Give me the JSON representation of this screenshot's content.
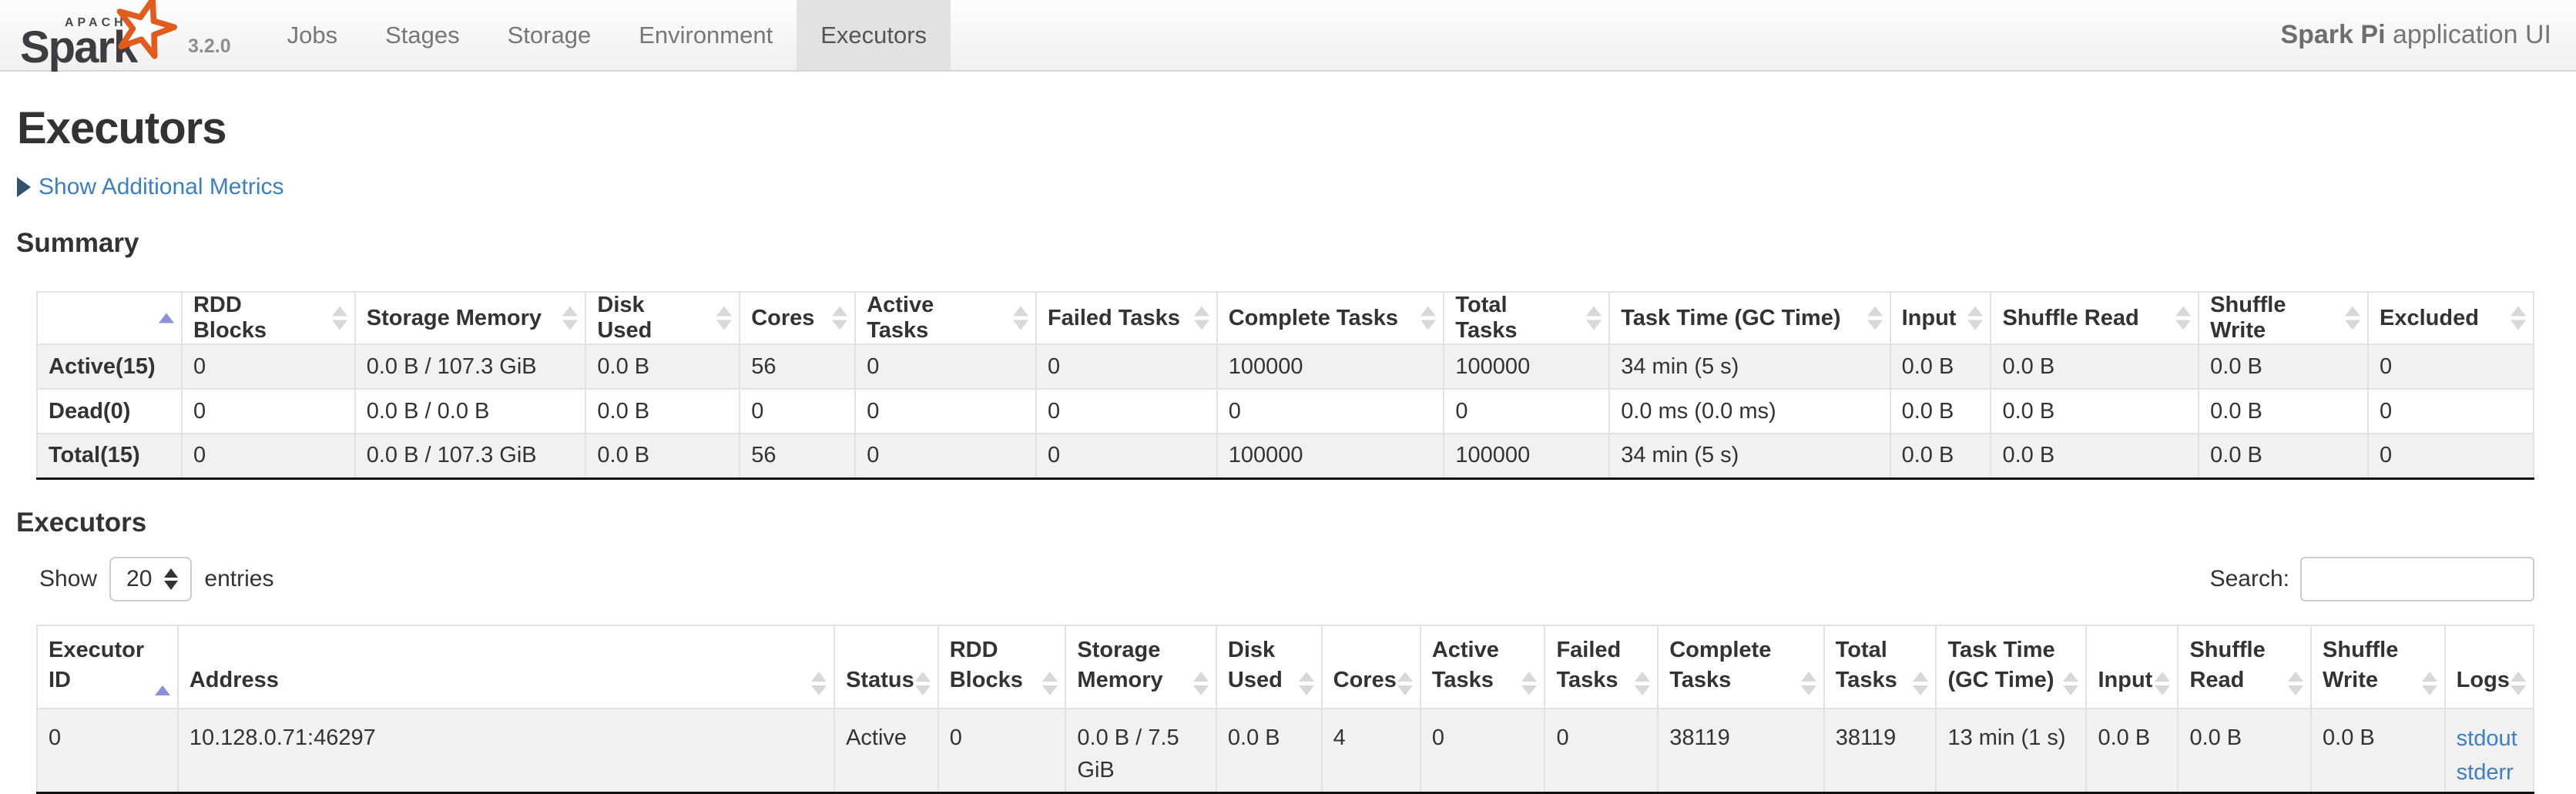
{
  "navbar": {
    "logo": {
      "apache": "APACHE",
      "name": "Spark",
      "version": "3.2.0"
    },
    "tabs": [
      {
        "label": "Jobs",
        "active": false
      },
      {
        "label": "Stages",
        "active": false
      },
      {
        "label": "Storage",
        "active": false
      },
      {
        "label": "Environment",
        "active": false
      },
      {
        "label": "Executors",
        "active": true
      }
    ],
    "app_title_bold": "Spark Pi",
    "app_title_rest": " application UI"
  },
  "page": {
    "title": "Executors",
    "metrics_toggle": "Show Additional Metrics",
    "summary_heading": "Summary",
    "executors_heading": "Executors"
  },
  "summary_table": {
    "columns": [
      "",
      "RDD Blocks",
      "Storage Memory",
      "Disk Used",
      "Cores",
      "Active Tasks",
      "Failed Tasks",
      "Complete Tasks",
      "Total Tasks",
      "Task Time (GC Time)",
      "Input",
      "Shuffle Read",
      "Shuffle Write",
      "Excluded"
    ],
    "sort": {
      "column": 0,
      "dir": "asc"
    },
    "rows": [
      {
        "label": "Active(15)",
        "values": [
          "0",
          "0.0 B / 107.3 GiB",
          "0.0 B",
          "56",
          "0",
          "0",
          "100000",
          "100000",
          "34 min (5 s)",
          "0.0 B",
          "0.0 B",
          "0.0 B",
          "0"
        ]
      },
      {
        "label": "Dead(0)",
        "values": [
          "0",
          "0.0 B / 0.0 B",
          "0.0 B",
          "0",
          "0",
          "0",
          "0",
          "0",
          "0.0 ms (0.0 ms)",
          "0.0 B",
          "0.0 B",
          "0.0 B",
          "0"
        ]
      },
      {
        "label": "Total(15)",
        "values": [
          "0",
          "0.0 B / 107.3 GiB",
          "0.0 B",
          "56",
          "0",
          "0",
          "100000",
          "100000",
          "34 min (5 s)",
          "0.0 B",
          "0.0 B",
          "0.0 B",
          "0"
        ]
      }
    ]
  },
  "controls": {
    "show_label": "Show",
    "page_size": "20",
    "entries_label": "entries",
    "search_label": "Search:",
    "search_value": ""
  },
  "executors_table": {
    "columns": [
      "Executor ID",
      "Address",
      "Status",
      "RDD Blocks",
      "Storage Memory",
      "Disk Used",
      "Cores",
      "Active Tasks",
      "Failed Tasks",
      "Complete Tasks",
      "Total Tasks",
      "Task Time (GC Time)",
      "Input",
      "Shuffle Read",
      "Shuffle Write",
      "Logs"
    ],
    "sort": {
      "column": 0,
      "dir": "asc"
    },
    "rows": [
      {
        "cells": [
          "0",
          "10.128.0.71:46297",
          "Active",
          "0",
          "0.0 B / 7.5 GiB",
          "0.0 B",
          "4",
          "0",
          "0",
          "38119",
          "38119",
          "13 min (1 s)",
          "0.0 B",
          "0.0 B",
          "0.0 B"
        ],
        "logs": [
          "stdout",
          "stderr"
        ]
      }
    ]
  },
  "colors": {
    "link_blue": "#3b7fc4",
    "sort_active_arrow": "#8a90dc",
    "sort_inactive_arrow": "#d8d8d8",
    "logo_orange": "#e25a1c",
    "stripe_gray": "#f1f1f1",
    "active_tab_gray": "#e2e2e2"
  }
}
